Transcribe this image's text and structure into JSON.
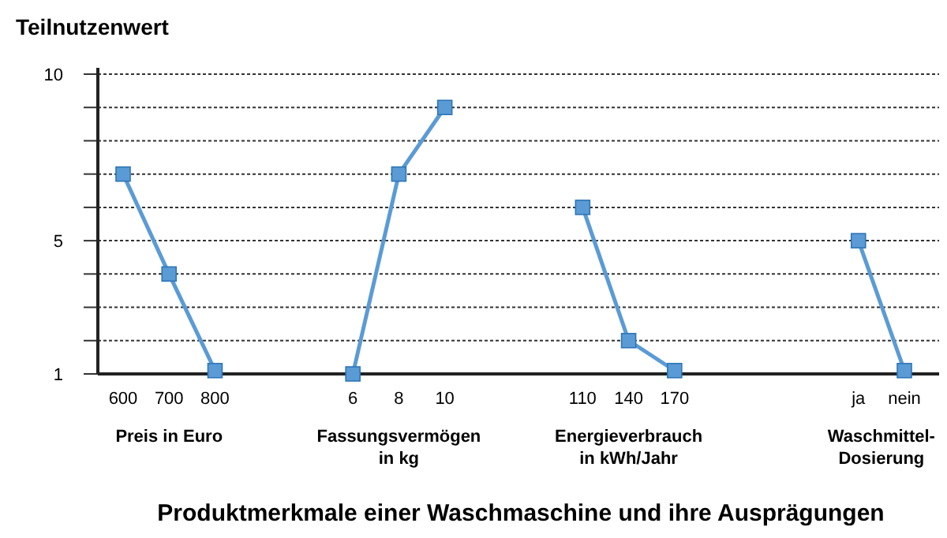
{
  "chart_data": {
    "type": "line",
    "ylabel": "Teilnutzenwert",
    "xlabel": "Produktmerkmale einer Waschmaschine und ihre Ausprägungen",
    "categories": [
      "600",
      "700",
      "800",
      null,
      null,
      "6",
      "8",
      "10",
      null,
      null,
      "110",
      "140",
      "170",
      null,
      null,
      null,
      "ja",
      "nein"
    ],
    "series": [
      {
        "color": "#5b9bd5",
        "values": [
          7,
          4,
          1.1,
          null,
          null,
          1,
          7,
          9,
          null,
          null,
          6,
          2,
          1.1,
          null,
          null,
          null,
          5,
          1.1
        ]
      }
    ],
    "ylim": [
      1,
      10
    ],
    "yticks": [
      1,
      {
        "value": 2,
        "label": null
      },
      {
        "value": 3,
        "label": null
      },
      {
        "value": 4,
        "label": null
      },
      5,
      {
        "value": 6,
        "label": null
      },
      {
        "value": 7,
        "label": null
      },
      {
        "value": 8,
        "label": null
      },
      {
        "value": 9,
        "label": null
      },
      10
    ],
    "grid": "y",
    "marker": "square",
    "annotations": [
      "Preis in Euro",
      "Fassungsvermögen\nin kg",
      "Energieverbrauch\nin kWh/Jahr",
      "Waschmittel-\nDosierung"
    ]
  }
}
